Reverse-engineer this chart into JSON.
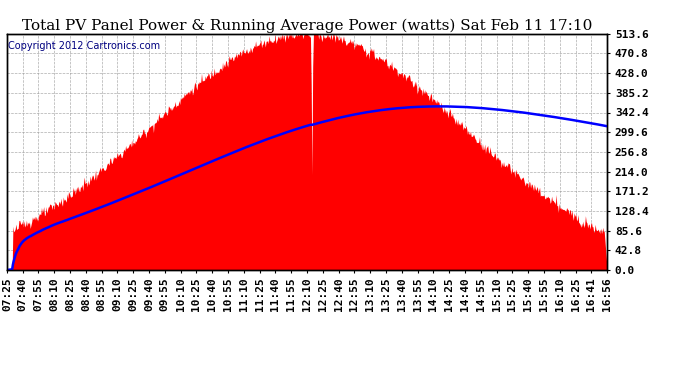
{
  "title": "Total PV Panel Power & Running Average Power (watts) Sat Feb 11 17:10",
  "copyright": "Copyright 2012 Cartronics.com",
  "y_ticks": [
    0.0,
    42.8,
    85.6,
    128.4,
    171.2,
    214.0,
    256.8,
    299.6,
    342.4,
    385.2,
    428.0,
    470.8,
    513.6
  ],
  "ymax": 513.6,
  "ymin": 0.0,
  "fill_color": "#FF0000",
  "avg_line_color": "#0000FF",
  "background_color": "#FFFFFF",
  "grid_color": "#999999",
  "title_fontsize": 11,
  "copyright_fontsize": 7,
  "tick_fontsize": 8,
  "x_labels": [
    "07:25",
    "07:40",
    "07:55",
    "08:10",
    "08:25",
    "08:40",
    "08:55",
    "09:10",
    "09:25",
    "09:40",
    "09:55",
    "10:10",
    "10:25",
    "10:40",
    "10:55",
    "11:10",
    "11:25",
    "11:40",
    "11:55",
    "12:10",
    "12:25",
    "12:40",
    "12:55",
    "13:10",
    "13:25",
    "13:40",
    "13:55",
    "14:10",
    "14:25",
    "14:40",
    "14:55",
    "15:10",
    "15:25",
    "15:40",
    "15:55",
    "16:10",
    "16:25",
    "16:41",
    "16:56"
  ]
}
